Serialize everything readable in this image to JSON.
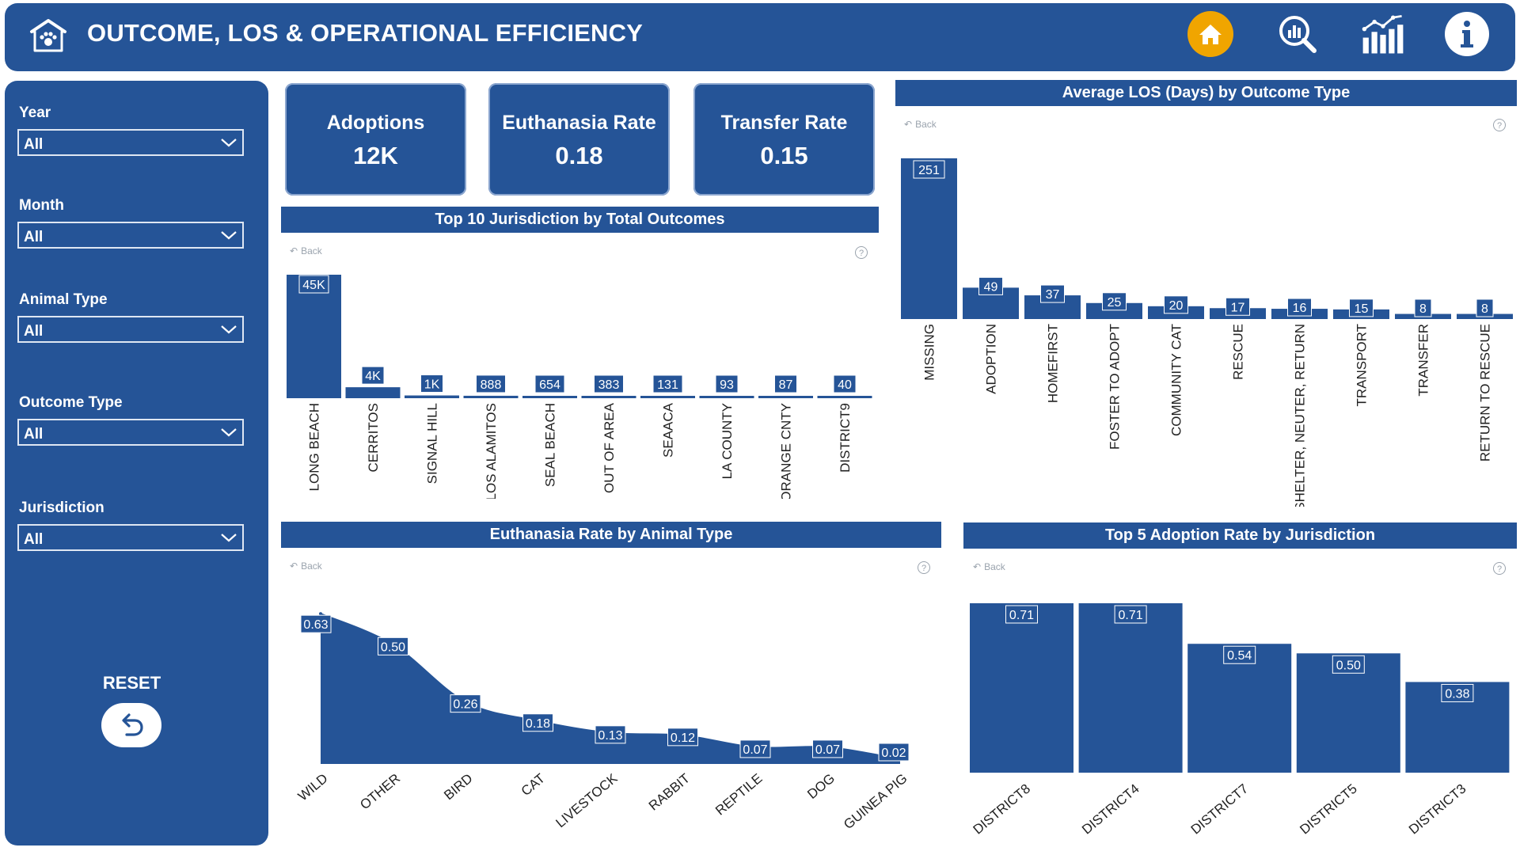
{
  "header": {
    "title": "OUTCOME, LOS & OPERATIONAL EFFICIENCY"
  },
  "nav": {
    "icons": [
      "home-icon",
      "analytics-icon",
      "bar-chart-icon",
      "info-icon"
    ],
    "home_color": "#f0a500"
  },
  "colors": {
    "brand": "#255497",
    "accent": "#f0a500"
  },
  "filters": [
    {
      "label": "Year",
      "value": "All"
    },
    {
      "label": "Month",
      "value": "All"
    },
    {
      "label": "Animal Type",
      "value": "All"
    },
    {
      "label": "Outcome Type",
      "value": "All"
    },
    {
      "label": "Jurisdiction",
      "value": "All"
    }
  ],
  "reset": {
    "label": "RESET"
  },
  "kpis": [
    {
      "label": "Adoptions",
      "value": "12K"
    },
    {
      "label": "Euthanasia Rate",
      "value": "0.18"
    },
    {
      "label": "Transfer Rate",
      "value": "0.15"
    }
  ],
  "visual_controls": {
    "back": "Back",
    "help": "?"
  },
  "chart_data": [
    {
      "type": "bar",
      "title": "Top 10 Jurisdiction by Total Outcomes",
      "categories": [
        "LONG BEACH",
        "CERRITOS",
        "SIGNAL HILL",
        "LOS ALAMITOS",
        "SEAL BEACH",
        "OUT OF AREA",
        "SEAACA",
        "LA COUNTY",
        "ORANGE CNTY",
        "DISTRICT9"
      ],
      "values": [
        45000,
        4000,
        1000,
        888,
        654,
        383,
        131,
        93,
        87,
        40
      ],
      "data_labels": [
        "45K",
        "4K",
        "1K",
        "888",
        "654",
        "383",
        "131",
        "93",
        "87",
        "40"
      ]
    },
    {
      "type": "bar",
      "title": "Average LOS (Days) by Outcome Type",
      "categories": [
        "MISSING",
        "ADOPTION",
        "HOMEFIRST",
        "FOSTER TO ADOPT",
        "COMMUNITY CAT",
        "RESCUE",
        "SHELTER, NEUTER, RETURN",
        "TRANSPORT",
        "TRANSFER",
        "RETURN TO RESCUE"
      ],
      "values": [
        251,
        49,
        37,
        25,
        20,
        17,
        16,
        15,
        8,
        8
      ],
      "data_labels": [
        "251",
        "49",
        "37",
        "25",
        "20",
        "17",
        "16",
        "15",
        "8",
        "8"
      ]
    },
    {
      "type": "area",
      "title": "Euthanasia Rate by Animal Type",
      "categories": [
        "WILD",
        "OTHER",
        "BIRD",
        "CAT",
        "LIVESTOCK",
        "RABBIT",
        "REPTILE",
        "DOG",
        "GUINEA PIG"
      ],
      "values": [
        0.63,
        0.5,
        0.26,
        0.18,
        0.13,
        0.12,
        0.07,
        0.07,
        0.02
      ],
      "data_labels": [
        "0.63",
        "0.50",
        "0.26",
        "0.18",
        "0.13",
        "0.12",
        "0.07",
        "0.07",
        "0.02"
      ]
    },
    {
      "type": "bar",
      "title": "Top 5 Adoption Rate by Jurisdiction",
      "categories": [
        "DISTRICT8",
        "DISTRICT4",
        "DISTRICT7",
        "DISTRICT5",
        "DISTRICT3"
      ],
      "values": [
        0.71,
        0.71,
        0.54,
        0.5,
        0.38
      ],
      "data_labels": [
        "0.71",
        "0.71",
        "0.54",
        "0.50",
        "0.38"
      ]
    }
  ]
}
